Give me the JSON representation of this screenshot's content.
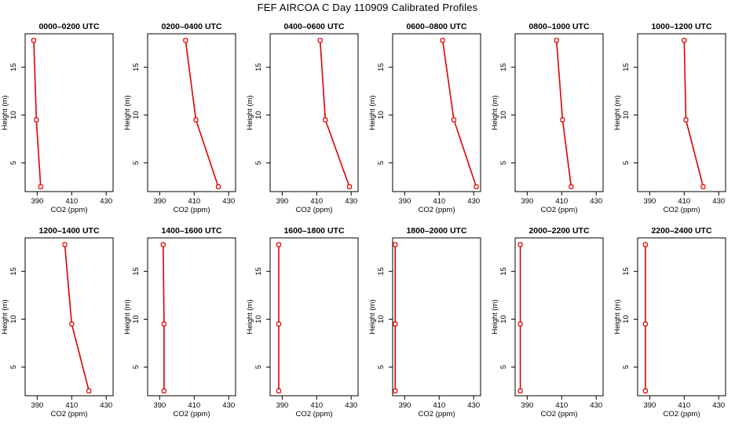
{
  "title": "FEF AIRCOA C  Day 110909  Calibrated Profiles",
  "colors": {
    "line": "#dd0000",
    "axis": "#000000"
  },
  "chart_data": [
    {
      "type": "line",
      "title": "0000–0200 UTC",
      "xlabel": "CO2 (ppm)",
      "ylabel": "Height (m)",
      "xlim": [
        383,
        434
      ],
      "ylim": [
        2,
        18.5
      ],
      "xticks": [
        "390",
        "410",
        "430"
      ],
      "yticks": [
        "5",
        "10",
        "15"
      ],
      "series": [
        {
          "name": "profile",
          "x": [
            388.0,
            389.5,
            392.0
          ],
          "y": [
            17.8,
            9.5,
            2.5
          ]
        }
      ]
    },
    {
      "type": "line",
      "title": "0200–0400 UTC",
      "xlabel": "CO2 (ppm)",
      "ylabel": "Height (m)",
      "xlim": [
        383,
        434
      ],
      "ylim": [
        2,
        18.5
      ],
      "xticks": [
        "390",
        "410",
        "430"
      ],
      "yticks": [
        "5",
        "10",
        "15"
      ],
      "series": [
        {
          "name": "profile",
          "x": [
            405.0,
            411.0,
            424.0
          ],
          "y": [
            17.8,
            9.5,
            2.5
          ]
        }
      ]
    },
    {
      "type": "line",
      "title": "0400–0600 UTC",
      "xlabel": "CO2 (ppm)",
      "ylabel": "Height (m)",
      "xlim": [
        383,
        434
      ],
      "ylim": [
        2,
        18.5
      ],
      "xticks": [
        "390",
        "410",
        "430"
      ],
      "yticks": [
        "5",
        "10",
        "15"
      ],
      "series": [
        {
          "name": "profile",
          "x": [
            412.0,
            415.0,
            429.0
          ],
          "y": [
            17.8,
            9.5,
            2.5
          ]
        }
      ]
    },
    {
      "type": "line",
      "title": "0600–0800 UTC",
      "xlabel": "CO2 (ppm)",
      "ylabel": "Height (m)",
      "xlim": [
        383,
        434
      ],
      "ylim": [
        2,
        18.5
      ],
      "xticks": [
        "390",
        "410",
        "430"
      ],
      "yticks": [
        "5",
        "10",
        "15"
      ],
      "series": [
        {
          "name": "profile",
          "x": [
            412.0,
            418.5,
            431.5
          ],
          "y": [
            17.8,
            9.5,
            2.5
          ]
        }
      ]
    },
    {
      "type": "line",
      "title": "0800–1000 UTC",
      "xlabel": "CO2 (ppm)",
      "ylabel": "Height (m)",
      "xlim": [
        383,
        434
      ],
      "ylim": [
        2,
        18.5
      ],
      "xticks": [
        "390",
        "410",
        "430"
      ],
      "yticks": [
        "5",
        "10",
        "15"
      ],
      "series": [
        {
          "name": "profile",
          "x": [
            407.0,
            410.5,
            415.5
          ],
          "y": [
            17.8,
            9.5,
            2.5
          ]
        }
      ]
    },
    {
      "type": "line",
      "title": "1000–1200 UTC",
      "xlabel": "CO2 (ppm)",
      "ylabel": "Height (m)",
      "xlim": [
        383,
        434
      ],
      "ylim": [
        2,
        18.5
      ],
      "xticks": [
        "390",
        "410",
        "430"
      ],
      "yticks": [
        "5",
        "10",
        "15"
      ],
      "series": [
        {
          "name": "profile",
          "x": [
            410.0,
            411.0,
            421.0
          ],
          "y": [
            17.8,
            9.5,
            2.5
          ]
        }
      ]
    },
    {
      "type": "line",
      "title": "1200–1400 UTC",
      "xlabel": "CO2 (ppm)",
      "ylabel": "Height (m)",
      "xlim": [
        383,
        434
      ],
      "ylim": [
        2,
        18.5
      ],
      "xticks": [
        "390",
        "410",
        "430"
      ],
      "yticks": [
        "5",
        "10",
        "15"
      ],
      "series": [
        {
          "name": "profile",
          "x": [
            406.0,
            410.0,
            420.0
          ],
          "y": [
            17.8,
            9.5,
            2.5
          ]
        }
      ]
    },
    {
      "type": "line",
      "title": "1400–1600 UTC",
      "xlabel": "CO2 (ppm)",
      "ylabel": "Height (m)",
      "xlim": [
        383,
        434
      ],
      "ylim": [
        2,
        18.5
      ],
      "xticks": [
        "390",
        "410",
        "430"
      ],
      "yticks": [
        "5",
        "10",
        "15"
      ],
      "series": [
        {
          "name": "profile",
          "x": [
            392.0,
            392.5,
            392.5
          ],
          "y": [
            17.8,
            9.5,
            2.5
          ]
        }
      ]
    },
    {
      "type": "line",
      "title": "1600–1800 UTC",
      "xlabel": "CO2 (ppm)",
      "ylabel": "Height (m)",
      "xlim": [
        383,
        434
      ],
      "ylim": [
        2,
        18.5
      ],
      "xticks": [
        "390",
        "410",
        "430"
      ],
      "yticks": [
        "5",
        "10",
        "15"
      ],
      "series": [
        {
          "name": "profile",
          "x": [
            388.0,
            388.0,
            388.0
          ],
          "y": [
            17.8,
            9.5,
            2.5
          ]
        }
      ]
    },
    {
      "type": "line",
      "title": "1800–2000 UTC",
      "xlabel": "CO2 (ppm)",
      "ylabel": "Height (m)",
      "xlim": [
        383,
        434
      ],
      "ylim": [
        2,
        18.5
      ],
      "xticks": [
        "390",
        "410",
        "430"
      ],
      "yticks": [
        "5",
        "10",
        "15"
      ],
      "series": [
        {
          "name": "profile",
          "x": [
            384.5,
            384.5,
            384.5
          ],
          "y": [
            17.8,
            9.5,
            2.5
          ]
        }
      ]
    },
    {
      "type": "line",
      "title": "2000–2200 UTC",
      "xlabel": "CO2 (ppm)",
      "ylabel": "Height (m)",
      "xlim": [
        383,
        434
      ],
      "ylim": [
        2,
        18.5
      ],
      "xticks": [
        "390",
        "410",
        "430"
      ],
      "yticks": [
        "5",
        "10",
        "15"
      ],
      "series": [
        {
          "name": "profile",
          "x": [
            386.0,
            386.0,
            386.0
          ],
          "y": [
            17.8,
            9.5,
            2.5
          ]
        }
      ]
    },
    {
      "type": "line",
      "title": "2200–2400 UTC",
      "xlabel": "CO2 (ppm)",
      "ylabel": "Height (m)",
      "xlim": [
        383,
        434
      ],
      "ylim": [
        2,
        18.5
      ],
      "xticks": [
        "390",
        "410",
        "430"
      ],
      "yticks": [
        "5",
        "10",
        "15"
      ],
      "series": [
        {
          "name": "profile",
          "x": [
            387.5,
            387.5,
            387.5
          ],
          "y": [
            17.8,
            9.5,
            2.5
          ]
        }
      ]
    }
  ]
}
